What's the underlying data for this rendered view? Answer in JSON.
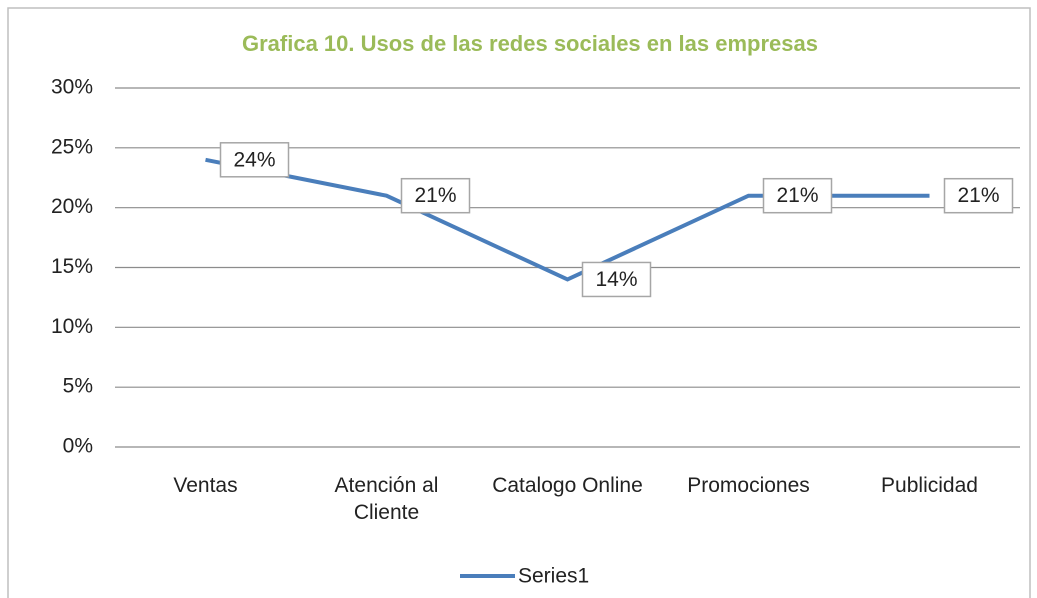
{
  "chart_data": {
    "type": "line",
    "title": "Grafica 10. Usos de las redes sociales en las empresas",
    "categories": [
      "Ventas",
      "Atención al Cliente",
      "Catalogo Online",
      "Promociones",
      "Publicidad"
    ],
    "series": [
      {
        "name": "Series1",
        "color": "#4a7ebb",
        "values": [
          24,
          21,
          14,
          21,
          21
        ],
        "value_labels": [
          "24%",
          "21%",
          "14%",
          "21%",
          "21%"
        ]
      }
    ],
    "ylim": [
      0,
      30
    ],
    "yticks": [
      {
        "value": 0,
        "label": "0%"
      },
      {
        "value": 5,
        "label": "5%"
      },
      {
        "value": 10,
        "label": "10%"
      },
      {
        "value": 15,
        "label": "15%"
      },
      {
        "value": 20,
        "label": "20%"
      },
      {
        "value": 25,
        "label": "25%"
      },
      {
        "value": 30,
        "label": "30%"
      }
    ],
    "grid": true,
    "legend": "bottom"
  }
}
